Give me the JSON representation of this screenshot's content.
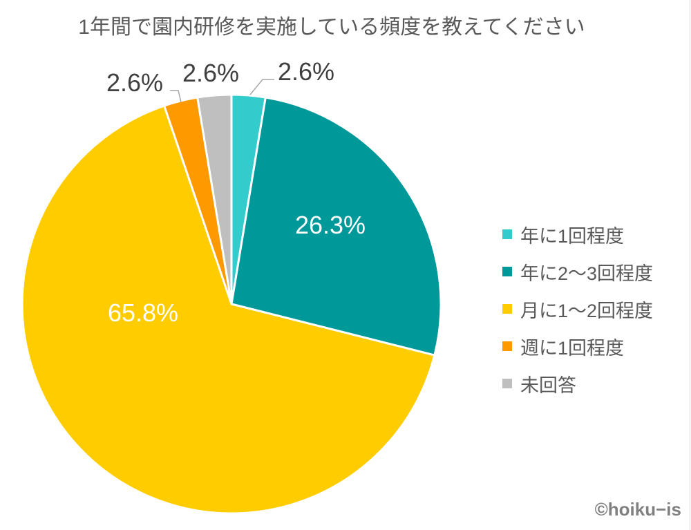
{
  "chart_data": {
    "type": "pie",
    "title": "1年間で園内研修を実施している頻度を教えてください",
    "categories": [
      "年に1回程度",
      "年に2～3回程度",
      "月に1～2回程度",
      "週に1回程度",
      "未回答"
    ],
    "values": [
      2.6,
      26.3,
      65.8,
      2.6,
      2.6
    ],
    "data_labels": [
      "2.6%",
      "26.3%",
      "65.8%",
      "2.6%",
      "2.6%"
    ],
    "colors": [
      "#33CCCC",
      "#009999",
      "#FFCC00",
      "#FF9900",
      "#BFBFBF"
    ],
    "start_angle": "12 o'clock, clockwise",
    "legend_position": "right"
  },
  "credit": "©hoiku−is"
}
